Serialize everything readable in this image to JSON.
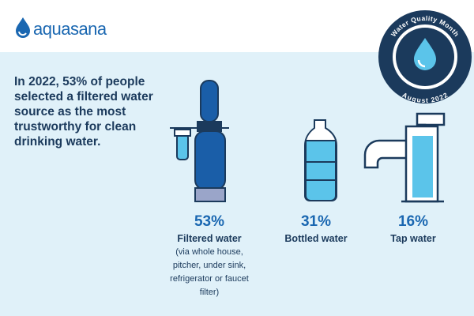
{
  "logo": "aquasana",
  "badge": {
    "top": "Water Quality Month",
    "bottom": "August 2022"
  },
  "headline": "In 2022, 53% of people selected a filtered water source as the most trustworthy for clean drinking water.",
  "items": [
    {
      "percent": "53%",
      "label": "Filtered water",
      "note": "(via whole house, pitcher, under sink, refrigerator or faucet filter)"
    },
    {
      "percent": "31%",
      "label": "Bottled water"
    },
    {
      "percent": "16%",
      "label": "Tap water"
    }
  ]
}
